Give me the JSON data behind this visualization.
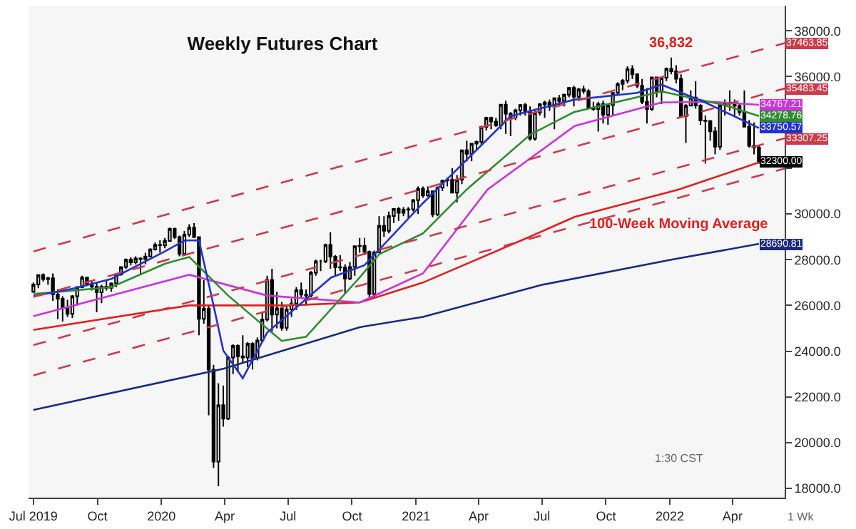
{
  "chart_data": {
    "type": "candlestick",
    "title": "Weekly Futures Chart",
    "color": "#000000",
    "x": [
      "2019-07-01",
      "2019-07-08",
      "2019-07-15",
      "2019-07-22",
      "2019-07-29",
      "2019-08-05",
      "2019-08-12",
      "2019-08-19",
      "2019-08-26",
      "2019-09-02",
      "2019-09-09",
      "2019-09-16",
      "2019-09-23",
      "2019-09-30",
      "2019-10-07",
      "2019-10-14",
      "2019-10-21",
      "2019-10-28",
      "2019-11-04",
      "2019-11-11",
      "2019-11-18",
      "2019-11-25",
      "2019-12-02",
      "2019-12-09",
      "2019-12-16",
      "2019-12-23",
      "2019-12-30",
      "2020-01-06",
      "2020-01-13",
      "2020-01-20",
      "2020-01-27",
      "2020-02-03",
      "2020-02-10",
      "2020-02-17",
      "2020-02-24",
      "2020-03-02",
      "2020-03-09",
      "2020-03-16",
      "2020-03-23",
      "2020-03-30",
      "2020-04-06",
      "2020-04-13",
      "2020-04-20",
      "2020-04-27",
      "2020-05-04",
      "2020-05-11",
      "2020-05-18",
      "2020-05-25",
      "2020-06-01",
      "2020-06-08",
      "2020-06-15",
      "2020-06-22",
      "2020-06-29",
      "2020-07-06",
      "2020-07-13",
      "2020-07-20",
      "2020-07-27",
      "2020-08-03",
      "2020-08-10",
      "2020-08-17",
      "2020-08-24",
      "2020-08-31",
      "2020-09-07",
      "2020-09-14",
      "2020-09-21",
      "2020-09-28",
      "2020-10-05",
      "2020-10-12",
      "2020-10-19",
      "2020-10-26",
      "2020-11-02",
      "2020-11-09",
      "2020-11-16",
      "2020-11-23",
      "2020-11-30",
      "2020-12-07",
      "2020-12-14",
      "2020-12-21",
      "2020-12-28",
      "2021-01-04",
      "2021-01-11",
      "2021-01-18",
      "2021-01-25",
      "2021-02-01",
      "2021-02-08",
      "2021-02-15",
      "2021-02-22",
      "2021-03-01",
      "2021-03-08",
      "2021-03-15",
      "2021-03-22",
      "2021-03-29",
      "2021-04-05",
      "2021-04-12",
      "2021-04-19",
      "2021-04-26",
      "2021-05-03",
      "2021-05-10",
      "2021-05-17",
      "2021-05-24",
      "2021-05-31",
      "2021-06-07",
      "2021-06-14",
      "2021-06-21",
      "2021-06-28",
      "2021-07-05",
      "2021-07-12",
      "2021-07-19",
      "2021-07-26",
      "2021-08-02",
      "2021-08-09",
      "2021-08-16",
      "2021-08-23",
      "2021-08-30",
      "2021-09-06",
      "2021-09-13",
      "2021-09-20",
      "2021-09-27",
      "2021-10-04",
      "2021-10-11",
      "2021-10-18",
      "2021-10-25",
      "2021-11-01",
      "2021-11-08",
      "2021-11-15",
      "2021-11-22",
      "2021-11-29",
      "2021-12-06",
      "2021-12-13",
      "2021-12-20",
      "2021-12-27",
      "2022-01-03",
      "2022-01-10",
      "2022-01-17",
      "2022-01-24",
      "2022-01-31",
      "2022-02-07",
      "2022-02-14",
      "2022-02-21",
      "2022-02-28",
      "2022-03-07",
      "2022-03-14",
      "2022-03-21",
      "2022-03-28",
      "2022-04-04",
      "2022-04-11",
      "2022-04-18",
      "2022-04-25",
      "2022-05-02",
      "2022-05-09"
    ],
    "ohlc": [
      [
        26600,
        27000,
        26550,
        26920
      ],
      [
        26920,
        27360,
        26750,
        27330
      ],
      [
        27330,
        27400,
        27050,
        27150
      ],
      [
        27150,
        27250,
        26900,
        27190
      ],
      [
        27190,
        27400,
        26200,
        26480
      ],
      [
        26480,
        26700,
        25400,
        26290
      ],
      [
        26290,
        26400,
        25300,
        25890
      ],
      [
        25890,
        26250,
        25500,
        25630
      ],
      [
        25630,
        26450,
        25450,
        26400
      ],
      [
        26400,
        26850,
        26000,
        26800
      ],
      [
        26800,
        27300,
        26750,
        27220
      ],
      [
        27220,
        27250,
        26850,
        26930
      ],
      [
        26930,
        27100,
        26650,
        26820
      ],
      [
        26820,
        27000,
        25700,
        26570
      ],
      [
        26570,
        26900,
        26100,
        26820
      ],
      [
        26820,
        27100,
        26650,
        26770
      ],
      [
        26770,
        27000,
        26600,
        26960
      ],
      [
        26960,
        27400,
        26800,
        27350
      ],
      [
        27350,
        27700,
        27300,
        27680
      ],
      [
        27680,
        28050,
        27600,
        28000
      ],
      [
        28000,
        28100,
        27750,
        27880
      ],
      [
        27880,
        28150,
        27800,
        28050
      ],
      [
        28050,
        28100,
        27350,
        28020
      ],
      [
        28020,
        28300,
        27800,
        28140
      ],
      [
        28140,
        28500,
        28100,
        28450
      ],
      [
        28450,
        28750,
        28400,
        28650
      ],
      [
        28650,
        28850,
        28300,
        28630
      ],
      [
        28630,
        28950,
        28500,
        28820
      ],
      [
        28820,
        29400,
        28800,
        29350
      ],
      [
        29350,
        29400,
        28900,
        28990
      ],
      [
        28990,
        29050,
        28150,
        28260
      ],
      [
        28260,
        29250,
        28200,
        29100
      ],
      [
        29100,
        29550,
        29000,
        29400
      ],
      [
        29400,
        29600,
        28950,
        28990
      ],
      [
        28990,
        29000,
        24700,
        25410
      ],
      [
        25410,
        27100,
        25200,
        25860
      ],
      [
        25860,
        26000,
        21200,
        23190
      ],
      [
        23190,
        23400,
        18900,
        19170
      ],
      [
        19170,
        22600,
        18100,
        21640
      ],
      [
        21640,
        22500,
        20700,
        21050
      ],
      [
        21050,
        23800,
        21000,
        23720
      ],
      [
        23720,
        24300,
        23000,
        24240
      ],
      [
        24240,
        24300,
        23100,
        23780
      ],
      [
        23780,
        24700,
        23500,
        23720
      ],
      [
        23720,
        24400,
        23300,
        24330
      ],
      [
        24330,
        24400,
        23200,
        23690
      ],
      [
        23690,
        24600,
        23600,
        24470
      ],
      [
        24470,
        25700,
        24400,
        25380
      ],
      [
        25380,
        27300,
        25300,
        27110
      ],
      [
        27110,
        27600,
        24850,
        25600
      ],
      [
        25600,
        26600,
        25000,
        25870
      ],
      [
        25870,
        26150,
        24900,
        25020
      ],
      [
        25020,
        26000,
        24900,
        25830
      ],
      [
        25830,
        26300,
        25500,
        26080
      ],
      [
        26080,
        26800,
        25800,
        26670
      ],
      [
        26670,
        27000,
        26300,
        26470
      ],
      [
        26470,
        26700,
        26000,
        26430
      ],
      [
        26430,
        27500,
        26350,
        27430
      ],
      [
        27430,
        28000,
        27300,
        27930
      ],
      [
        27930,
        28000,
        27500,
        27930
      ],
      [
        27930,
        28700,
        27850,
        28650
      ],
      [
        28650,
        29200,
        27600,
        28130
      ],
      [
        28130,
        28200,
        27300,
        27670
      ],
      [
        27670,
        28200,
        27500,
        27660
      ],
      [
        27660,
        27800,
        26500,
        27170
      ],
      [
        27170,
        27900,
        27100,
        27680
      ],
      [
        27680,
        28600,
        27300,
        28590
      ],
      [
        28590,
        28950,
        28300,
        28610
      ],
      [
        28610,
        28950,
        28200,
        28340
      ],
      [
        28340,
        28400,
        26300,
        26500
      ],
      [
        26500,
        28400,
        26300,
        28320
      ],
      [
        28320,
        29900,
        28300,
        29480
      ],
      [
        29480,
        29900,
        29000,
        29260
      ],
      [
        29260,
        30100,
        29150,
        29910
      ],
      [
        29910,
        30250,
        29600,
        30220
      ],
      [
        30220,
        30300,
        29700,
        30050
      ],
      [
        30050,
        30300,
        29900,
        30180
      ],
      [
        30180,
        30300,
        29800,
        30200
      ],
      [
        30200,
        30650,
        30100,
        30600
      ],
      [
        30600,
        31200,
        30000,
        31100
      ],
      [
        31100,
        31200,
        30700,
        30810
      ],
      [
        30810,
        31200,
        30750,
        30990
      ],
      [
        30990,
        31000,
        29850,
        29980
      ],
      [
        29980,
        31200,
        29900,
        31150
      ],
      [
        31150,
        31500,
        31000,
        31460
      ],
      [
        31460,
        31600,
        31200,
        31490
      ],
      [
        31490,
        32000,
        30900,
        30930
      ],
      [
        30930,
        31700,
        30500,
        31500
      ],
      [
        31500,
        32800,
        31300,
        32780
      ],
      [
        32780,
        33200,
        32300,
        32630
      ],
      [
        32630,
        33100,
        32300,
        33070
      ],
      [
        33070,
        33200,
        32800,
        33150
      ],
      [
        33150,
        33850,
        33000,
        33800
      ],
      [
        33800,
        34250,
        33650,
        34200
      ],
      [
        34200,
        34250,
        33700,
        34040
      ],
      [
        34040,
        34200,
        33800,
        33870
      ],
      [
        33870,
        34800,
        33700,
        34780
      ],
      [
        34780,
        34950,
        33500,
        34380
      ],
      [
        34380,
        34450,
        33400,
        34210
      ],
      [
        34210,
        34600,
        34100,
        34530
      ],
      [
        34530,
        34800,
        34300,
        34760
      ],
      [
        34760,
        34850,
        34300,
        34480
      ],
      [
        34480,
        34700,
        33200,
        33290
      ],
      [
        33290,
        34500,
        33200,
        34430
      ],
      [
        34430,
        34850,
        34300,
        34790
      ],
      [
        34790,
        34950,
        34200,
        34870
      ],
      [
        34870,
        35000,
        34500,
        34690
      ],
      [
        34690,
        35100,
        33700,
        35060
      ],
      [
        35060,
        35200,
        34700,
        34930
      ],
      [
        34930,
        35250,
        34700,
        35210
      ],
      [
        35210,
        35550,
        35100,
        35510
      ],
      [
        35510,
        35600,
        34700,
        35120
      ],
      [
        35120,
        35500,
        35000,
        35450
      ],
      [
        35450,
        35600,
        35250,
        35370
      ],
      [
        35370,
        35450,
        34600,
        34610
      ],
      [
        34610,
        34900,
        34500,
        34580
      ],
      [
        34580,
        34900,
        33600,
        34800
      ],
      [
        34800,
        34950,
        33950,
        34330
      ],
      [
        34330,
        34800,
        33900,
        34750
      ],
      [
        34750,
        35300,
        34300,
        35290
      ],
      [
        35290,
        35750,
        35200,
        35680
      ],
      [
        35680,
        35900,
        35400,
        35820
      ],
      [
        35820,
        36450,
        35700,
        36330
      ],
      [
        36330,
        36500,
        35900,
        36100
      ],
      [
        36100,
        36150,
        35500,
        35600
      ],
      [
        35600,
        35900,
        34800,
        34900
      ],
      [
        34900,
        35500,
        33950,
        34580
      ],
      [
        34580,
        36000,
        34500,
        35970
      ],
      [
        35970,
        36000,
        35100,
        35370
      ],
      [
        35370,
        35950,
        34800,
        35950
      ],
      [
        35950,
        36400,
        35800,
        36340
      ],
      [
        36340,
        36832,
        36100,
        36230
      ],
      [
        36230,
        36500,
        35700,
        35910
      ],
      [
        35910,
        36100,
        34200,
        34270
      ],
      [
        34270,
        34800,
        33100,
        34730
      ],
      [
        34730,
        35400,
        34700,
        35090
      ],
      [
        35090,
        35800,
        34600,
        34740
      ],
      [
        34740,
        34800,
        33900,
        34080
      ],
      [
        34080,
        34300,
        32200,
        34060
      ],
      [
        34060,
        34100,
        33200,
        33610
      ],
      [
        33610,
        33800,
        32600,
        32940
      ],
      [
        32940,
        34800,
        32800,
        34750
      ],
      [
        34750,
        35000,
        34300,
        34860
      ],
      [
        34860,
        35400,
        34500,
        34820
      ],
      [
        34820,
        35000,
        34300,
        34720
      ],
      [
        34720,
        34800,
        34300,
        34450
      ],
      [
        34450,
        35400,
        33800,
        33810
      ],
      [
        33810,
        34100,
        32900,
        32980
      ],
      [
        32980,
        34000,
        32600,
        32900
      ],
      [
        32900,
        33000,
        32200,
        32300
      ]
    ],
    "value_labels": [
      null,
      null,
      null,
      null,
      null,
      null,
      null,
      null,
      null,
      null,
      null,
      null,
      null,
      null,
      null,
      null,
      null,
      null,
      null,
      null,
      null,
      null,
      null,
      null,
      null,
      null,
      null,
      null,
      null,
      null,
      null,
      null,
      null,
      null,
      null,
      null,
      null,
      null,
      null,
      null,
      null,
      null,
      null,
      null,
      null,
      null,
      null,
      null,
      null,
      null,
      null,
      null,
      null,
      null,
      null,
      null,
      null,
      null,
      null,
      null,
      null,
      null,
      null,
      null,
      null,
      null,
      null,
      null,
      null,
      null,
      null,
      null,
      null,
      null,
      null,
      null,
      null,
      null,
      null,
      null,
      null,
      null,
      null,
      null,
      null,
      null,
      null,
      null,
      null,
      null,
      null,
      null,
      null,
      null,
      null,
      null,
      null,
      null,
      null,
      null,
      null,
      null,
      null,
      null,
      null,
      null,
      null,
      null,
      null,
      null,
      null,
      null,
      null,
      null,
      null,
      null,
      null,
      null,
      null,
      null,
      null,
      null,
      null,
      null,
      null,
      null,
      null,
      null,
      null,
      null,
      null,
      null,
      null,
      null,
      null,
      null,
      null,
      null,
      null,
      null,
      null,
      null,
      null,
      null,
      null,
      null,
      null,
      null,
      null,
      "32300.00"
    ],
    "series": [
      {
        "type": "line",
        "color": "#e02020",
        "x": [
          "2019-07-01",
          "2020-02-10",
          "2020-07-01",
          "2020-10-12",
          "2021-01-11",
          "2021-06-15",
          "2021-08-17",
          "2022-01-14",
          "2022-05-09"
        ],
        "values": [
          24930,
          26000,
          26000,
          26130,
          27000,
          29020,
          29870,
          31070,
          32250
        ]
      },
      {
        "type": "line",
        "color": "#1a2a80",
        "x": [
          "2019-07-01",
          "2020-03-31",
          "2020-10-12",
          "2021-01-11",
          "2021-07-01",
          "2022-01-03",
          "2022-05-09"
        ],
        "values": [
          21430,
          23240,
          25050,
          25500,
          26900,
          28000,
          28690.81
        ],
        "value_labels": [
          null,
          null,
          null,
          null,
          null,
          null,
          "28690.81"
        ]
      },
      {
        "type": "line",
        "color": "#cc33dd",
        "x": [
          "2019-07-01",
          "2020-02-10",
          "2020-06-01",
          "2020-10-12",
          "2021-01-11",
          "2021-04-14",
          "2021-08-17",
          "2021-12-20",
          "2022-03-01",
          "2022-05-09"
        ],
        "values": [
          25530,
          27340,
          26430,
          26130,
          27400,
          31070,
          33840,
          34870,
          34900,
          34767.21
        ],
        "value_labels": [
          null,
          null,
          null,
          null,
          null,
          null,
          null,
          null,
          null,
          "34767.21"
        ]
      },
      {
        "type": "line",
        "color": "#2e8b2e",
        "x": [
          "2019-07-01",
          "2019-10-21",
          "2020-01-06",
          "2020-02-10",
          "2020-04-06",
          "2020-06-22",
          "2020-07-27",
          "2020-10-12",
          "2020-11-09",
          "2021-01-11",
          "2021-03-15",
          "2021-06-15",
          "2021-08-16",
          "2021-12-20",
          "2022-03-21",
          "2022-05-09"
        ],
        "values": [
          26500,
          26800,
          27820,
          28120,
          26430,
          24450,
          24630,
          27220,
          28240,
          29150,
          31070,
          33480,
          34450,
          35350,
          34750,
          34278.76
        ],
        "value_labels": [
          null,
          null,
          null,
          null,
          null,
          null,
          null,
          null,
          null,
          null,
          null,
          null,
          null,
          null,
          null,
          "34278.76"
        ]
      },
      {
        "type": "line",
        "color": "#2233cc",
        "x": [
          "2019-07-01",
          "2019-08-26",
          "2019-10-21",
          "2020-01-06",
          "2020-02-03",
          "2020-02-24",
          "2020-03-16",
          "2020-03-30",
          "2020-04-27",
          "2020-06-01",
          "2020-09-01",
          "2020-10-19",
          "2021-01-11",
          "2021-05-17",
          "2021-08-16",
          "2021-11-15",
          "2021-12-20",
          "2022-02-21",
          "2022-05-09"
        ],
        "values": [
          26400,
          26730,
          27160,
          28360,
          28840,
          28850,
          26000,
          24030,
          22820,
          24810,
          27220,
          27760,
          30470,
          34270,
          34990,
          35290,
          35650,
          34870,
          33750.57
        ],
        "value_labels": [
          null,
          null,
          null,
          null,
          null,
          null,
          null,
          null,
          null,
          null,
          null,
          null,
          null,
          null,
          null,
          null,
          null,
          null,
          "33750.57"
        ]
      },
      {
        "type": "line",
        "line_style": "dashed",
        "color": "#cc3b4a",
        "x": [
          "2019-07-01",
          "2022-06-15"
        ],
        "values": [
          28360,
          37463.85
        ],
        "value_labels": [
          null,
          "37463.85"
        ]
      },
      {
        "type": "line",
        "line_style": "dashed",
        "color": "#cc3b4a",
        "x": [
          "2019-07-01",
          "2022-06-15"
        ],
        "values": [
          26370,
          35483.45
        ],
        "value_labels": [
          null,
          "35483.45"
        ]
      },
      {
        "type": "line",
        "line_style": "dashed",
        "color": "#cc3b4a",
        "x": [
          "2019-07-01",
          "2022-06-15"
        ],
        "values": [
          24270,
          33307.25
        ],
        "value_labels": [
          null,
          "33307.25"
        ]
      },
      {
        "type": "line",
        "line_style": "dashed",
        "color": "#cc3b4a",
        "x": [
          "2019-07-01",
          "2022-06-15"
        ],
        "values": [
          22940,
          31980
        ]
      }
    ],
    "annotations": [
      {
        "text": "36,832",
        "x": "2022-01-03",
        "y": 36832
      },
      "100-Week Moving Average",
      "1:30 CST",
      "1 Wk"
    ],
    "xlim": [
      "2019-06-24",
      "2022-06-15"
    ],
    "xticks": [
      {
        "value": "2019-07-01",
        "label": "Jul 2019"
      },
      {
        "value": "2019-10-01",
        "label": "Oct"
      },
      {
        "value": "2020-01-01",
        "label": "2020"
      },
      {
        "value": "2020-04-01",
        "label": "Apr"
      },
      {
        "value": "2020-07-01",
        "label": "Jul"
      },
      {
        "value": "2020-10-01",
        "label": "Oct"
      },
      {
        "value": "2021-01-01",
        "label": "2021"
      },
      {
        "value": "2021-04-01",
        "label": "Apr"
      },
      {
        "value": "2021-07-01",
        "label": "Jul"
      },
      {
        "value": "2021-10-01",
        "label": "Oct"
      },
      {
        "value": "2022-01-01",
        "label": "2022"
      },
      {
        "value": "2022-04-01",
        "label": "Apr"
      }
    ],
    "ylim": [
      17600,
      39100
    ],
    "yticks": [
      {
        "value": 18000,
        "label": "18000.0"
      },
      {
        "value": 20000,
        "label": "20000.0"
      },
      {
        "value": 22000,
        "label": "22000.0"
      },
      {
        "value": 24000,
        "label": "24000.0"
      },
      {
        "value": 26000,
        "label": "26000.0"
      },
      {
        "value": 28000,
        "label": "28000.0"
      },
      {
        "value": 30000,
        "label": "30000.0"
      },
      {
        "value": 32000,
        "label": null
      },
      {
        "value": 34000,
        "label": null
      },
      {
        "value": 36000,
        "label": "36000.0"
      },
      {
        "value": 38000,
        "label": "38000.0"
      }
    ]
  }
}
